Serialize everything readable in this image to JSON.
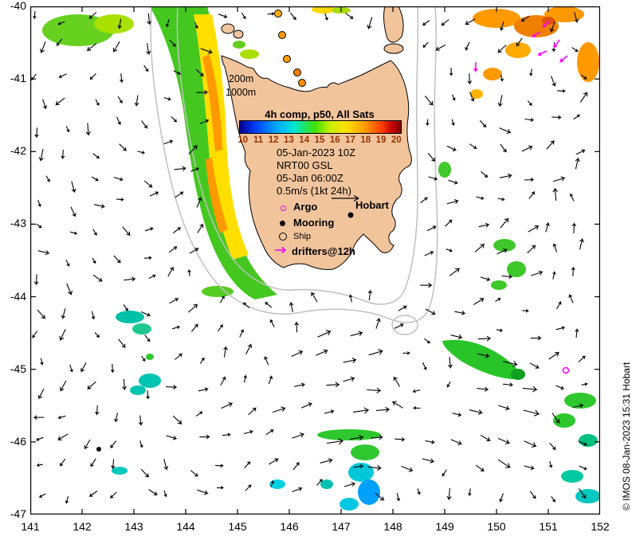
{
  "axes": {
    "x_ticks": [
      "141",
      "142",
      "143",
      "144",
      "145",
      "146",
      "147",
      "148",
      "149",
      "150",
      "151",
      "152"
    ],
    "y_ticks": [
      "-40",
      "-41",
      "-42",
      "-43",
      "-44",
      "-45",
      "-46",
      "-47"
    ]
  },
  "legend": {
    "depth_200": "200m",
    "depth_1000": "1000m",
    "colorbar_title": "4h comp, p50, All Sats",
    "colorbar_ticks": [
      "10",
      "11",
      "12",
      "13",
      "14",
      "15",
      "16",
      "17",
      "18",
      "19",
      "20"
    ],
    "sst_time": "05-Jan-2023 10Z",
    "product": "NRT00 GSL",
    "current_time": "05-Jan 06:00Z",
    "current_scale": "0.5m/s (1kt 24h)",
    "argo": "Argo",
    "mooring": "Mooring",
    "ship": "Ship",
    "drifters": "drifters@12h"
  },
  "map_labels": {
    "hobart": "Hobart"
  },
  "copyright": "© IMOS 08-Jan-2023 15:31 Hobart",
  "colors": {
    "land": "#f2c49c",
    "ocean": "#ffffff",
    "bathymetry_contour": "#c0c0c0",
    "current_arrow": "#000000",
    "drifter_magenta": "#ff00ff",
    "colorbar_tick_text": "#993300"
  },
  "chart_data": {
    "type": "map",
    "lon_range": [
      141,
      152
    ],
    "lat_range": [
      -47,
      -40
    ],
    "colorbar": {
      "title": "4h comp, p50, All Sats",
      "range": [
        10,
        20
      ]
    }
  }
}
